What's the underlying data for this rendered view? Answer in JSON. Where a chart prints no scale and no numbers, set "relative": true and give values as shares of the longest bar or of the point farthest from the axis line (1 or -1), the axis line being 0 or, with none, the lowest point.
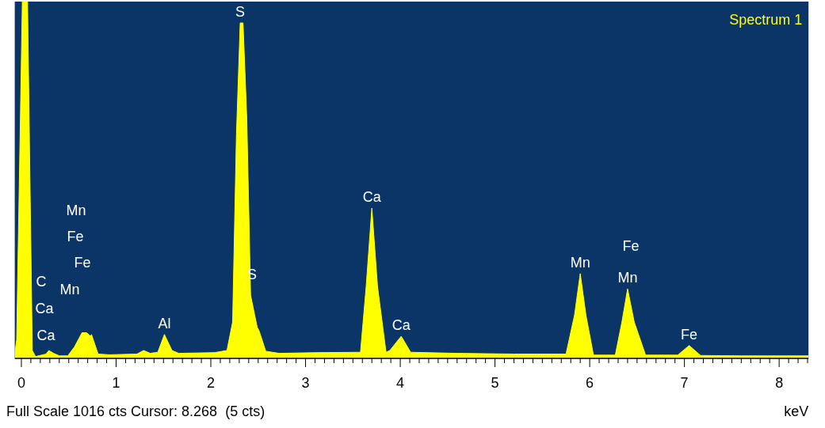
{
  "chart_data": {
    "type": "area",
    "relative": true,
    "xlabel": "keV",
    "xlim": [
      -0.07,
      8.31
    ],
    "xticks": [
      0,
      {
        "value": 0.1,
        "label": null
      },
      {
        "value": 0.2,
        "label": null
      },
      {
        "value": 0.3,
        "label": null
      },
      {
        "value": 0.4,
        "label": null
      },
      {
        "value": 0.5,
        "label": null
      },
      {
        "value": 0.6,
        "label": null
      },
      {
        "value": 0.7,
        "label": null
      },
      {
        "value": 0.8,
        "label": null
      },
      {
        "value": 0.9,
        "label": null
      },
      1,
      {
        "value": 1.1,
        "label": null
      },
      {
        "value": 1.2,
        "label": null
      },
      {
        "value": 1.3,
        "label": null
      },
      {
        "value": 1.4,
        "label": null
      },
      {
        "value": 1.5,
        "label": null
      },
      {
        "value": 1.6,
        "label": null
      },
      {
        "value": 1.7,
        "label": null
      },
      {
        "value": 1.8,
        "label": null
      },
      {
        "value": 1.9,
        "label": null
      },
      2,
      {
        "value": 2.1,
        "label": null
      },
      {
        "value": 2.2,
        "label": null
      },
      {
        "value": 2.3,
        "label": null
      },
      {
        "value": 2.4,
        "label": null
      },
      {
        "value": 2.5,
        "label": null
      },
      {
        "value": 2.6,
        "label": null
      },
      {
        "value": 2.7,
        "label": null
      },
      {
        "value": 2.8,
        "label": null
      },
      {
        "value": 2.9,
        "label": null
      },
      3,
      {
        "value": 3.1,
        "label": null
      },
      {
        "value": 3.2,
        "label": null
      },
      {
        "value": 3.3,
        "label": null
      },
      {
        "value": 3.4,
        "label": null
      },
      {
        "value": 3.5,
        "label": null
      },
      {
        "value": 3.6,
        "label": null
      },
      {
        "value": 3.7,
        "label": null
      },
      {
        "value": 3.8,
        "label": null
      },
      {
        "value": 3.9,
        "label": null
      },
      4,
      {
        "value": 4.1,
        "label": null
      },
      {
        "value": 4.2,
        "label": null
      },
      {
        "value": 4.3,
        "label": null
      },
      {
        "value": 4.4,
        "label": null
      },
      {
        "value": 4.5,
        "label": null
      },
      {
        "value": 4.6,
        "label": null
      },
      {
        "value": 4.7,
        "label": null
      },
      {
        "value": 4.8,
        "label": null
      },
      {
        "value": 4.9,
        "label": null
      },
      5,
      {
        "value": 5.1,
        "label": null
      },
      {
        "value": 5.2,
        "label": null
      },
      {
        "value": 5.3,
        "label": null
      },
      {
        "value": 5.4,
        "label": null
      },
      {
        "value": 5.5,
        "label": null
      },
      {
        "value": 5.6,
        "label": null
      },
      {
        "value": 5.7,
        "label": null
      },
      {
        "value": 5.8,
        "label": null
      },
      {
        "value": 5.9,
        "label": null
      },
      6,
      {
        "value": 6.1,
        "label": null
      },
      {
        "value": 6.2,
        "label": null
      },
      {
        "value": 6.3,
        "label": null
      },
      {
        "value": 6.4,
        "label": null
      },
      {
        "value": 6.5,
        "label": null
      },
      {
        "value": 6.6,
        "label": null
      },
      {
        "value": 6.7,
        "label": null
      },
      {
        "value": 6.8,
        "label": null
      },
      {
        "value": 6.9,
        "label": null
      },
      7,
      {
        "value": 7.1,
        "label": null
      },
      {
        "value": 7.2,
        "label": null
      },
      {
        "value": 7.3,
        "label": null
      },
      {
        "value": 7.4,
        "label": null
      },
      {
        "value": 7.5,
        "label": null
      },
      {
        "value": 7.6,
        "label": null
      },
      {
        "value": 7.7,
        "label": null
      },
      {
        "value": 7.8,
        "label": null
      },
      {
        "value": 7.9,
        "label": null
      },
      8,
      {
        "value": 8.1,
        "label": null
      },
      {
        "value": 8.2,
        "label": null
      },
      {
        "value": 8.3,
        "label": null
      }
    ],
    "series": [
      {
        "color": "#ffff00",
        "x": [
          -0.07,
          -0.05,
          0.01,
          0.065,
          0.115,
          0.15,
          0.26,
          0.29,
          0.34,
          0.4,
          0.49,
          0.56,
          0.64,
          0.69,
          0.73,
          0.74,
          0.81,
          0.93,
          1.22,
          1.29,
          1.36,
          1.44,
          1.51,
          1.59,
          1.66,
          2.04,
          2.17,
          2.23,
          2.27,
          2.31,
          2.34,
          2.38,
          2.42,
          2.49,
          2.51,
          2.58,
          2.72,
          3.13,
          3.58,
          3.64,
          3.7,
          3.76,
          3.85,
          3.89,
          4.01,
          4.11,
          4.6,
          5.2,
          5.75,
          5.84,
          5.9,
          5.96,
          6.04,
          6.27,
          6.34,
          6.4,
          6.47,
          6.59,
          6.93,
          7.05,
          7.17,
          7.6,
          8.31
        ],
        "values": [
          0.01,
          0.05,
          1,
          1,
          0.02,
          0.003,
          0.01,
          0.02,
          0.012,
          0.005,
          0.005,
          0.03,
          0.07,
          0.07,
          0.06,
          0.065,
          0.01,
          0.008,
          0.01,
          0.02,
          0.012,
          0.015,
          0.065,
          0.02,
          0.012,
          0.014,
          0.02,
          0.1,
          0.625,
          0.94,
          0.94,
          0.67,
          0.175,
          0.085,
          0.075,
          0.018,
          0.012,
          0.014,
          0.015,
          0.2,
          0.42,
          0.2,
          0.015,
          0.02,
          0.06,
          0.015,
          0.012,
          0.01,
          0.01,
          0.12,
          0.236,
          0.12,
          0.007,
          0.007,
          0.1,
          0.193,
          0.1,
          0.007,
          0.007,
          0.034,
          0.006,
          0.005,
          0.005
        ]
      }
    ],
    "annotations": [
      "Spectrum 1",
      "Full Scale 1016 cts Cursor: 8.268  (5 cts)",
      "Mn",
      "Fe",
      "Fe",
      "C",
      "Mn",
      "Ca",
      "Ca",
      "S",
      "Fe",
      {
        "text": "S",
        "x": 2.31,
        "y": 0.94
      },
      {
        "text": "Al",
        "x": 1.51,
        "y": 0.065
      },
      {
        "text": "Ca",
        "x": 3.7,
        "y": 0.42
      },
      {
        "text": "Ca",
        "x": 4.01,
        "y": 0.06
      },
      {
        "text": "Mn",
        "x": 5.9,
        "y": 0.236
      },
      {
        "text": "Mn",
        "x": 6.4,
        "y": 0.193
      },
      {
        "text": "Fe",
        "x": 7.05,
        "y": 0.034
      }
    ]
  }
}
